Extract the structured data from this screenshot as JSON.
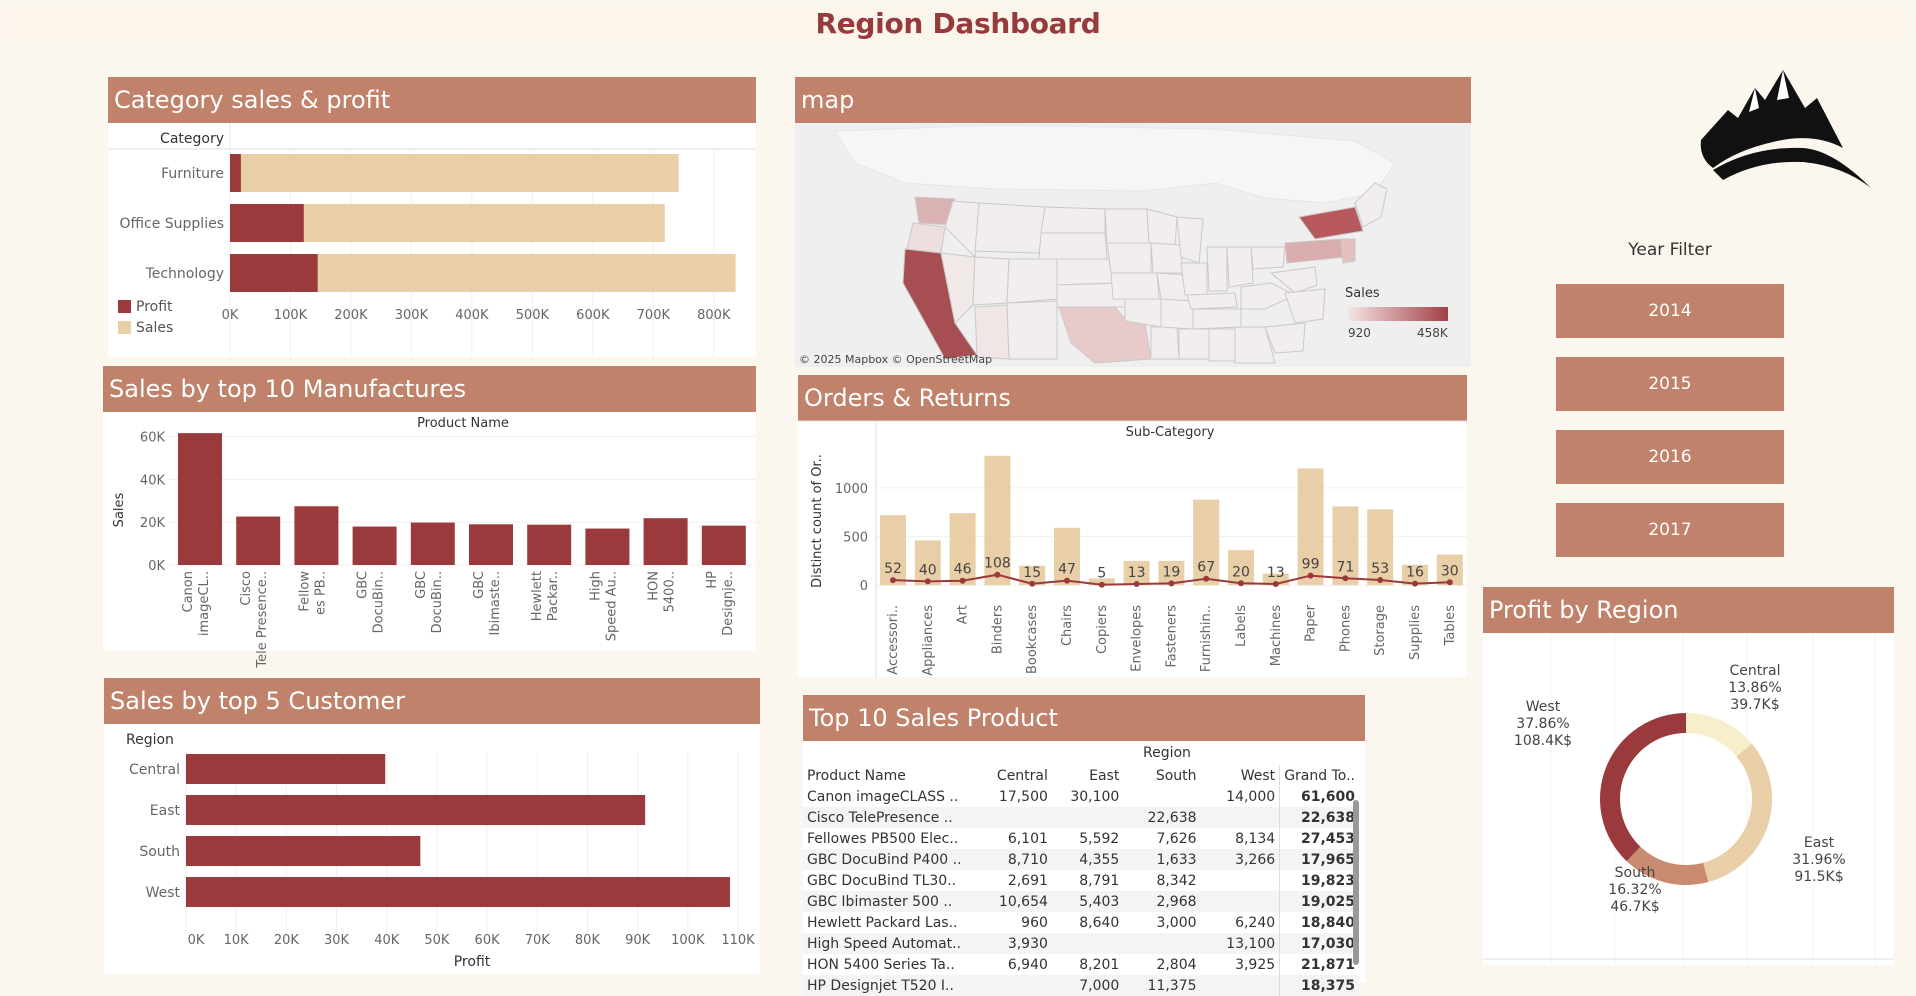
{
  "page": {
    "title": "Region Dashboard"
  },
  "colors": {
    "accent": "#c0826a",
    "profit": "#9b3a3c",
    "sales": "#e8cfa8",
    "title": "#963a3c"
  },
  "category_panel": {
    "title": "Category sales & profit",
    "axis_header": "Category",
    "legend": {
      "profit": "Profit",
      "sales": "Sales"
    },
    "chart_data": {
      "type": "bar",
      "orientation": "horizontal",
      "categories": [
        "Furniture",
        "Office Supplies",
        "Technology"
      ],
      "series": [
        {
          "name": "Profit",
          "values": [
            18000,
            122000,
            145000
          ]
        },
        {
          "name": "Sales",
          "values": [
            742000,
            719000,
            836000
          ]
        }
      ],
      "xticks": [
        "0K",
        "100K",
        "200K",
        "300K",
        "400K",
        "500K",
        "600K",
        "700K",
        "800K"
      ],
      "xlim": [
        0,
        840000
      ]
    }
  },
  "map_panel": {
    "title": "map",
    "attribution": "© 2025 Mapbox © OpenStreetMap",
    "legend_title": "Sales",
    "legend_min": "920",
    "legend_max": "458K",
    "grad_start": "#f5e4e4",
    "grad_end": "#a13f45"
  },
  "manufacturers_panel": {
    "title": "Sales by top 10 Manufactures",
    "axis_header": "Product Name",
    "ylabel": "Sales",
    "chart_data": {
      "type": "bar",
      "categories": [
        "Canon imageCL..",
        "Cisco Tele Presence..",
        "Fellow es PB..",
        "GBC DocuBin..",
        "GBC DocuBin..",
        "GBC Ibimaste..",
        "Hewlett Packar..",
        "High Speed Au..",
        "HON 5400..",
        "HP Designje.."
      ],
      "values": [
        61600,
        22638,
        27453,
        17965,
        19823,
        19025,
        18840,
        17030,
        21871,
        18375
      ],
      "yticks": [
        "0K",
        "20K",
        "40K",
        "60K"
      ],
      "ylim": [
        0,
        64000
      ]
    }
  },
  "orders_panel": {
    "title": "Orders & Returns",
    "axis_header": "Sub-Category",
    "ylabel": "Distinct count of Or..",
    "chart_data": {
      "type": "bar",
      "categories": [
        "Accessori..",
        "Appliances",
        "Art",
        "Binders",
        "Bookcases",
        "Chairs",
        "Copiers",
        "Envelopes",
        "Fasteners",
        "Furnishin..",
        "Labels",
        "Machines",
        "Paper",
        "Phones",
        "Storage",
        "Supplies",
        "Tables"
      ],
      "orders": [
        720,
        460,
        740,
        1330,
        200,
        590,
        70,
        250,
        250,
        880,
        360,
        120,
        1200,
        810,
        780,
        210,
        315
      ],
      "returns": [
        52,
        40,
        46,
        108,
        15,
        47,
        5,
        13,
        19,
        67,
        20,
        13,
        99,
        71,
        53,
        16,
        30
      ],
      "return_labels": [
        "52",
        "40",
        "46",
        "108",
        "15",
        "47",
        "5",
        "13",
        "19",
        "67",
        "20",
        "13",
        "99",
        "71",
        "53",
        "16",
        "30"
      ],
      "yticks": [
        "0",
        "500",
        "1000"
      ],
      "ylim": [
        -80,
        1400
      ]
    }
  },
  "customers_panel": {
    "title": "Sales by top 5 Customer",
    "axis_header": "Region",
    "xlabel": "Profit",
    "chart_data": {
      "type": "bar",
      "orientation": "horizontal",
      "categories": [
        "Central",
        "East",
        "South",
        "West"
      ],
      "values": [
        39700,
        91500,
        46700,
        108400
      ],
      "xticks": [
        "0K",
        "10K",
        "20K",
        "30K",
        "40K",
        "50K",
        "60K",
        "70K",
        "80K",
        "90K",
        "100K",
        "110K"
      ],
      "xlim": [
        0,
        110000
      ]
    }
  },
  "top10_panel": {
    "title": "Top 10 Sales Product",
    "region_header": "Region",
    "columns": [
      "Product Name",
      "Central",
      "East",
      "South",
      "West",
      "Grand To.."
    ],
    "rows": [
      [
        "Canon imageCLASS ..",
        "17,500",
        "30,100",
        "",
        "14,000",
        "61,600"
      ],
      [
        "Cisco TelePresence ..",
        "",
        "",
        "22,638",
        "",
        "22,638"
      ],
      [
        "Fellowes PB500 Elec..",
        "6,101",
        "5,592",
        "7,626",
        "8,134",
        "27,453"
      ],
      [
        "GBC DocuBind P400 ..",
        "8,710",
        "4,355",
        "1,633",
        "3,266",
        "17,965"
      ],
      [
        "GBC DocuBind TL30..",
        "2,691",
        "8,791",
        "8,342",
        "",
        "19,823"
      ],
      [
        "GBC Ibimaster 500 ..",
        "10,654",
        "5,403",
        "2,968",
        "",
        "19,025"
      ],
      [
        "Hewlett Packard Las..",
        "960",
        "8,640",
        "3,000",
        "6,240",
        "18,840"
      ],
      [
        "High Speed Automat..",
        "3,930",
        "",
        "",
        "13,100",
        "17,030"
      ],
      [
        "HON 5400 Series Ta..",
        "6,940",
        "8,201",
        "2,804",
        "3,925",
        "21,871"
      ],
      [
        "HP Designjet T520 I..",
        "",
        "7,000",
        "11,375",
        "",
        "18,375"
      ]
    ]
  },
  "year_filter": {
    "title": "Year Filter",
    "years": [
      "2014",
      "2015",
      "2016",
      "2017"
    ]
  },
  "profit_region_panel": {
    "title": "Profit by Region",
    "chart_data": {
      "type": "pie",
      "style": "donut",
      "labels": [
        "Central",
        "East",
        "South",
        "West"
      ],
      "percents": [
        13.86,
        31.96,
        16.32,
        37.86
      ],
      "values_k": [
        39.7,
        91.5,
        46.7,
        108.4
      ],
      "pct_text": [
        "13.86%",
        "31.96%",
        "16.32%",
        "37.86%"
      ],
      "val_text": [
        "39.7K$",
        "91.5K$",
        "46.7K$",
        "108.4K$"
      ],
      "colors": [
        "#f7eecb",
        "#e8cfa8",
        "#c98a72",
        "#9b3a3c"
      ]
    }
  }
}
